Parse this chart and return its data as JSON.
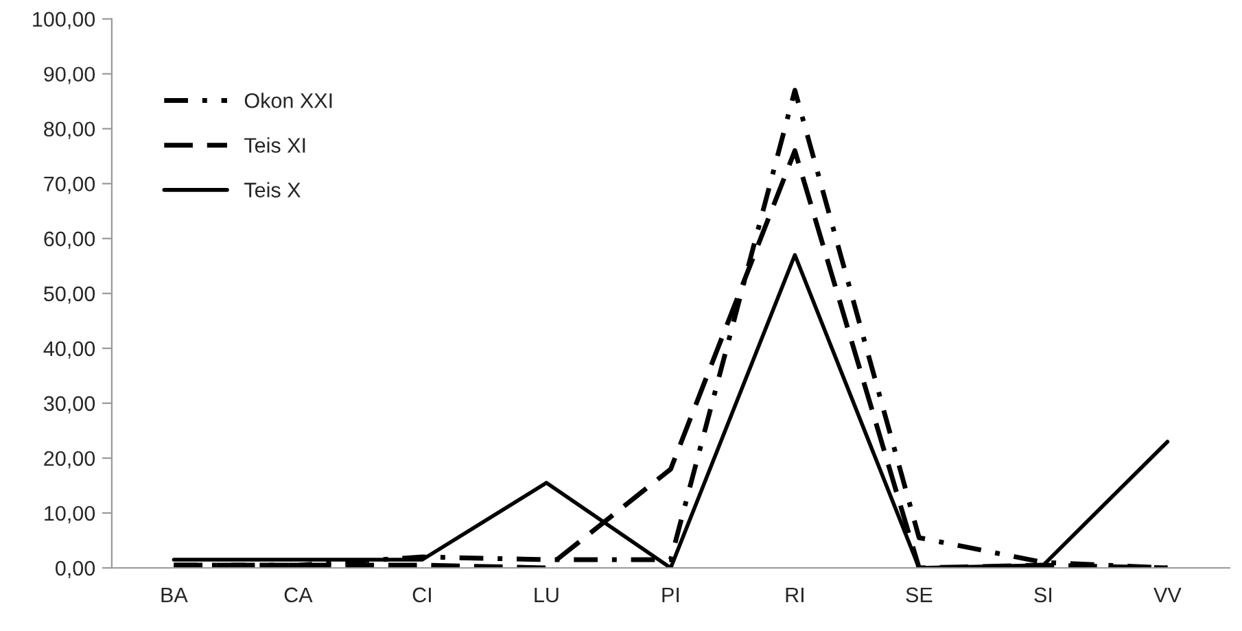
{
  "chart_data": {
    "type": "line",
    "categories": [
      "BA",
      "CA",
      "CI",
      "LU",
      "PI",
      "RI",
      "SE",
      "SI",
      "VV"
    ],
    "series": [
      {
        "name": "Okon XXI",
        "color": "#000000",
        "line_style": "dashdot",
        "values": [
          0.5,
          0.5,
          2,
          1.5,
          1.5,
          87,
          5.5,
          1,
          0
        ]
      },
      {
        "name": "Teis XI",
        "color": "#000000",
        "line_style": "dashed",
        "values": [
          0.5,
          0.5,
          0.5,
          0,
          18,
          76,
          0,
          0.5,
          0
        ]
      },
      {
        "name": "Teis X",
        "color": "#000000",
        "line_style": "solid",
        "values": [
          1.5,
          1.5,
          1.5,
          15.5,
          0,
          57,
          0,
          0.5,
          23
        ]
      }
    ],
    "ylim": [
      0,
      100
    ],
    "yticks": [
      {
        "value": 0,
        "label": "0,00"
      },
      {
        "value": 10,
        "label": "10,00"
      },
      {
        "value": 20,
        "label": "20,00"
      },
      {
        "value": 30,
        "label": "30,00"
      },
      {
        "value": 40,
        "label": "40,00"
      },
      {
        "value": 50,
        "label": "50,00"
      },
      {
        "value": 60,
        "label": "60,00"
      },
      {
        "value": 70,
        "label": "70,00"
      },
      {
        "value": 80,
        "label": "80,00"
      },
      {
        "value": 90,
        "label": "90,00"
      },
      {
        "value": 100,
        "label": "100,00"
      }
    ],
    "grid": false,
    "legend": "top left",
    "marker": "none"
  }
}
